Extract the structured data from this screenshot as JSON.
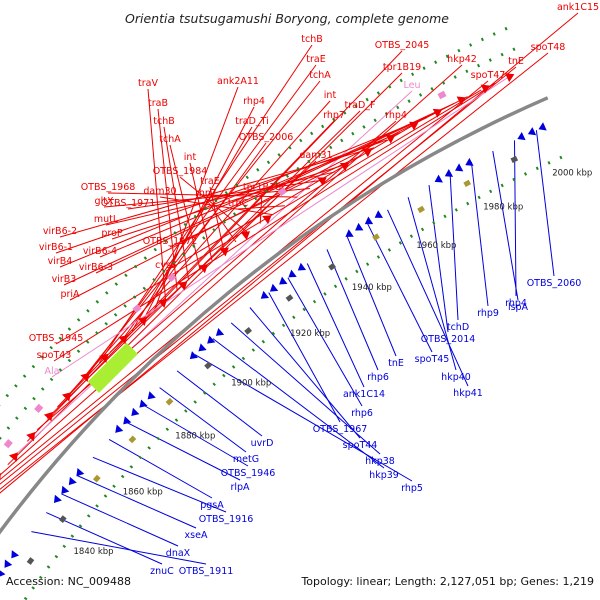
{
  "title": "Orientia tsutsugamushi Boryong, complete genome",
  "footer": {
    "accession": "Accession: NC_009488",
    "summary": "Topology: linear; Length: 2,127,051 bp; Genes: 1,219"
  },
  "colors": {
    "forward": "#ee0000",
    "reverse": "#0000dd",
    "pseudo": "#ee88cc",
    "backbone": "#888888",
    "dots": "#228822"
  },
  "ticks": [
    "1840 kbp",
    "1860 kbp",
    "1880 kbp",
    "1900 kbp",
    "1920 kbp",
    "1940 kbp",
    "1960 kbp",
    "1980 kbp",
    "2000 kbp"
  ],
  "forward_genes": [
    "ank1C15",
    "spoT48",
    "tnE",
    "spoT47",
    "hkp42",
    "tpr1B19",
    "Leu",
    "OTBS_2045",
    "rhp4",
    "traD_F",
    "rhp7",
    "int",
    "tchA",
    "traE",
    "tchB",
    "dam31",
    "OTBS_2006",
    "traD_Ti",
    "rhp4",
    "ank2A11",
    "traV",
    "traB",
    "tchB",
    "tchA",
    "int",
    "traE",
    "rhp7",
    "OTBS_1984",
    "tpr1B18",
    "dam30",
    "trbC",
    "OTBS_1968",
    "gltX",
    "OTBS_1971",
    "mutL",
    "proP",
    "OTBS_1972",
    "virB6-2",
    "virB6-1",
    "virB6-4",
    "cysS",
    "virB4",
    "virB6-3",
    "virB3",
    "priA",
    "OTBS_1945",
    "spoT43",
    "Ala"
  ],
  "reverse_genes": [
    "OTBS_2060",
    "rhp4",
    "lspA",
    "rhp9",
    "tchD",
    "OTBS_2014",
    "hkp40",
    "hkp41",
    "spoT45",
    "tnE",
    "rhp6",
    "ank1C14",
    "rhp6",
    "OTBS_1967",
    "spoT44",
    "hkp38",
    "hkp39",
    "rhp5",
    "uvrD",
    "metG",
    "OTBS_1946",
    "rlpA",
    "pgsA",
    "OTBS_1916",
    "xseA",
    "dnaX",
    "znuC",
    "OTBS_1911"
  ]
}
